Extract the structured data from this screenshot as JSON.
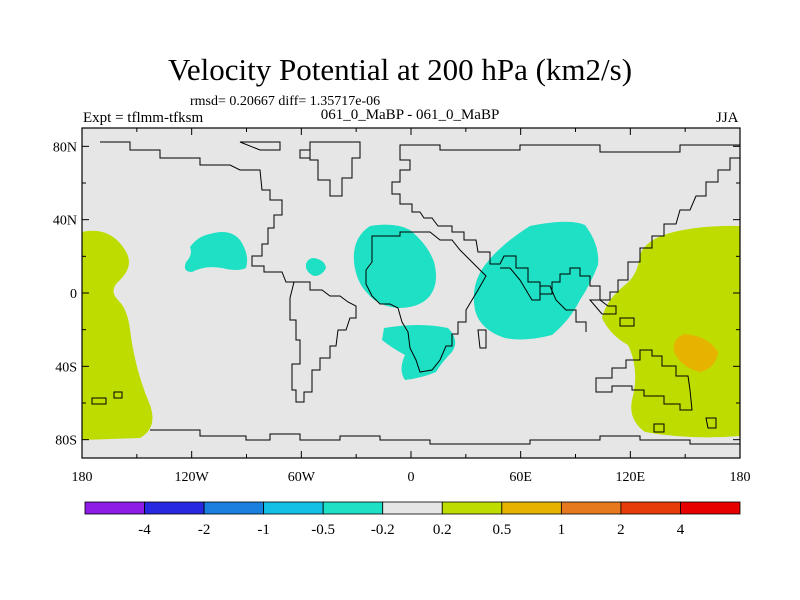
{
  "chart_data": {
    "type": "contour-map",
    "title": "Velocity Potential at 200 hPa (km2/s)",
    "stats": "rmsd= 0.20667 diff= 1.35717e-06",
    "left_label": "Expt = tflmm-tfksm",
    "center_label": "061_0_MaBP - 061_0_MaBP",
    "right_label": "JJA",
    "xlim": [
      -180,
      180
    ],
    "ylim": [
      -90,
      90
    ],
    "x_ticks": [
      {
        "value": -180,
        "label": "180"
      },
      {
        "value": -120,
        "label": "120W"
      },
      {
        "value": -60,
        "label": "60W"
      },
      {
        "value": 0,
        "label": "0"
      },
      {
        "value": 60,
        "label": "60E"
      },
      {
        "value": 120,
        "label": "120E"
      },
      {
        "value": 180,
        "label": "180"
      }
    ],
    "y_ticks": [
      {
        "value": 80,
        "label": "80N"
      },
      {
        "value": 40,
        "label": "40N"
      },
      {
        "value": 0,
        "label": "0"
      },
      {
        "value": -40,
        "label": "40S"
      },
      {
        "value": -80,
        "label": "80S"
      }
    ],
    "colorbar": {
      "levels": [
        "-4",
        "-2",
        "-1",
        "-0.5",
        "-0.2",
        "0.2",
        "0.5",
        "1",
        "2",
        "4"
      ],
      "colors": [
        "#8c1ce6",
        "#2828e0",
        "#1a80e0",
        "#14c0e6",
        "#1ee0c4",
        "#e6e6e6",
        "#bedc00",
        "#e6b400",
        "#e6781e",
        "#e63c0a",
        "#e60000"
      ]
    },
    "background_color": "#e6e6e6",
    "regions": [
      {
        "name": "positive-west-pacific",
        "level": "0.2 to 0.5",
        "color": "#bedc00"
      },
      {
        "name": "positive-east-pacific",
        "level": "0.2 to 0.5",
        "color": "#bedc00"
      },
      {
        "name": "positive-maximum",
        "level": "0.5 to 1",
        "color": "#e6b400"
      },
      {
        "name": "negative-north-america",
        "level": "-0.5 to -0.2",
        "color": "#1ee0c4"
      },
      {
        "name": "negative-small-atlantic",
        "level": "-0.5 to -0.2",
        "color": "#1ee0c4"
      },
      {
        "name": "negative-europe-africa",
        "level": "-0.5 to -0.2",
        "color": "#1ee0c4"
      },
      {
        "name": "negative-south-atlantic",
        "level": "-0.5 to -0.2",
        "color": "#1ee0c4"
      },
      {
        "name": "negative-indian-ocean",
        "level": "-0.5 to -0.2",
        "color": "#1ee0c4"
      }
    ]
  }
}
